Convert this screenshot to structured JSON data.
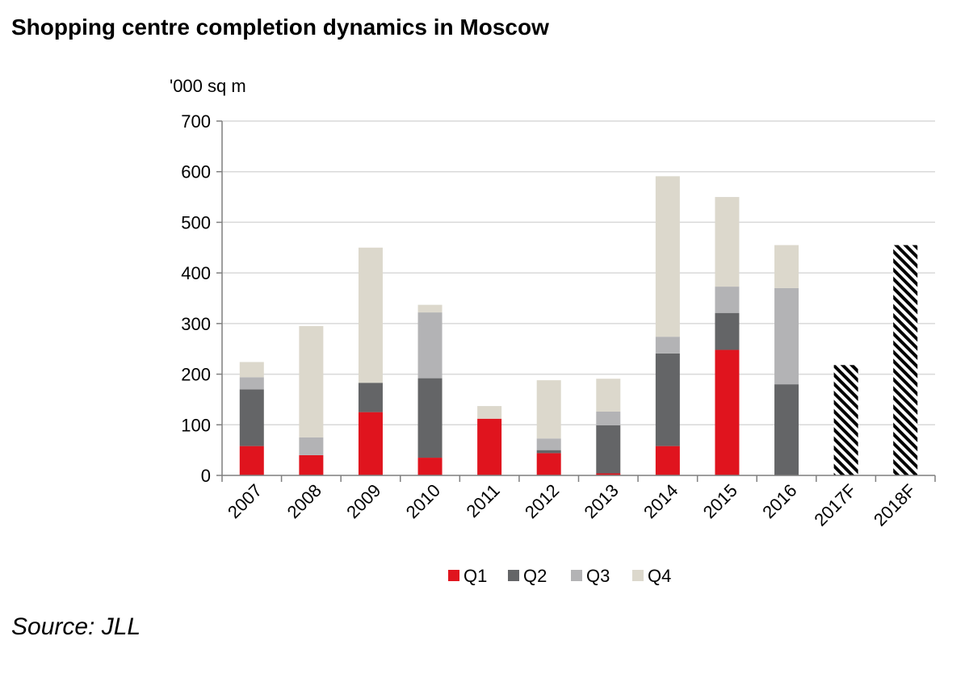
{
  "title": "Shopping centre completion dynamics in Moscow",
  "source": "Source: JLL",
  "chart_data": {
    "type": "bar",
    "stacked": true,
    "ylabel": "'000 sq m",
    "xlabel": "",
    "ylim": [
      0,
      700
    ],
    "yticks": [
      "0",
      "100",
      "200",
      "300",
      "400",
      "500",
      "600",
      "700"
    ],
    "grid": true,
    "legend_position": "bottom",
    "categories": [
      "2007",
      "2008",
      "2009",
      "2010",
      "2011",
      "2012",
      "2013",
      "2014",
      "2015",
      "2016",
      "2017F",
      "2018F"
    ],
    "series": [
      {
        "name": "Q1",
        "color": "#e0141e",
        "values": [
          58,
          40,
          125,
          35,
          112,
          44,
          4,
          58,
          248,
          0,
          null,
          null
        ]
      },
      {
        "name": "Q2",
        "color": "#646567",
        "values": [
          112,
          0,
          58,
          157,
          0,
          6,
          95,
          183,
          73,
          180,
          null,
          null
        ]
      },
      {
        "name": "Q3",
        "color": "#b3b3b5",
        "values": [
          24,
          35,
          0,
          130,
          0,
          23,
          27,
          33,
          52,
          190,
          null,
          null
        ]
      },
      {
        "name": "Q4",
        "color": "#dcd8cc",
        "values": [
          30,
          220,
          267,
          15,
          25,
          115,
          65,
          317,
          177,
          85,
          null,
          null
        ]
      }
    ],
    "forecast": {
      "pattern": "hatched",
      "values": [
        null,
        null,
        null,
        null,
        null,
        null,
        null,
        null,
        null,
        null,
        218,
        455
      ]
    }
  }
}
